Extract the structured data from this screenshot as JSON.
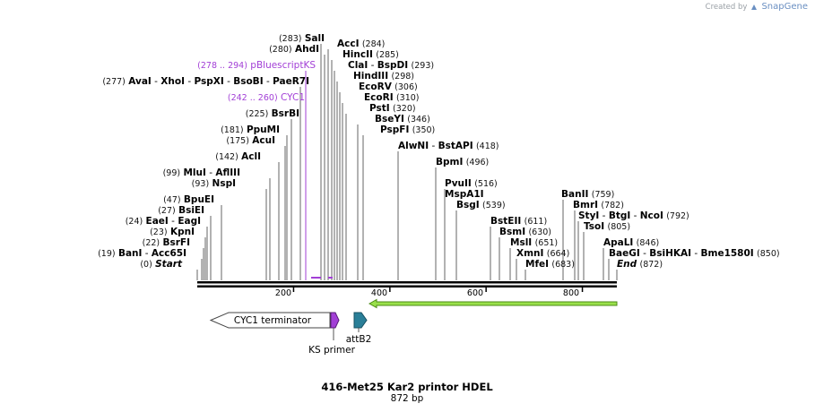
{
  "credit": {
    "prefix": "Created by",
    "brand": "SnapGene"
  },
  "title": {
    "name": "416-Met25 Kar2 printor HDEL",
    "length": "872 bp"
  },
  "colors": {
    "feature_purple": "#a23fd6",
    "attB2": "#2a7f98",
    "green_arrow": "#99e04a"
  },
  "sites": [
    {
      "pos": "(283)",
      "parts": [
        {
          "t": "SalI",
          "s": "b"
        }
      ]
    },
    {
      "pos": "(280)",
      "parts": [
        {
          "t": "AhdI",
          "s": "b"
        }
      ]
    },
    {
      "pos": "(278 .. 294)",
      "parts": [
        {
          "t": "pBluescriptKS",
          "s": ""
        }
      ],
      "purple": true
    },
    {
      "pos": "(277)",
      "parts": [
        {
          "t": "AvaI",
          "s": "b"
        },
        {
          "t": "   - ",
          "s": ""
        },
        {
          "t": "XhoI",
          "s": "b"
        },
        {
          "t": "   - ",
          "s": ""
        },
        {
          "t": "PspXI",
          "s": "b"
        },
        {
          "t": "   - ",
          "s": ""
        },
        {
          "t": "BsoBI",
          "s": "b"
        },
        {
          "t": "   - ",
          "s": ""
        },
        {
          "t": "PaeR7I",
          "s": "b"
        }
      ]
    },
    {
      "pos": "(242 .. 260)",
      "parts": [
        {
          "t": "CYC1",
          "s": ""
        }
      ],
      "purple": true
    },
    {
      "pos": "(225)",
      "parts": [
        {
          "t": "BsrBI",
          "s": "b"
        }
      ]
    },
    {
      "pos": "(181)",
      "parts": [
        {
          "t": "PpuMI",
          "s": "b"
        }
      ]
    },
    {
      "pos": "(175)",
      "parts": [
        {
          "t": "AcuI",
          "s": "b"
        }
      ]
    },
    {
      "pos": "(142)",
      "parts": [
        {
          "t": "AclI",
          "s": "b"
        }
      ]
    },
    {
      "pos": "(99)",
      "parts": [
        {
          "t": "MluI",
          "s": "b"
        },
        {
          "t": "   - ",
          "s": ""
        },
        {
          "t": "AflIII",
          "s": "b"
        }
      ]
    },
    {
      "pos": "(93)",
      "parts": [
        {
          "t": "NspI",
          "s": "b"
        }
      ]
    },
    {
      "pos": "(47)",
      "parts": [
        {
          "t": "BpuEI",
          "s": "b"
        }
      ]
    },
    {
      "pos": "(27)",
      "parts": [
        {
          "t": "BsiEI",
          "s": "b"
        }
      ]
    },
    {
      "pos": "(24)",
      "parts": [
        {
          "t": "EaeI",
          "s": "b"
        },
        {
          "t": "   - ",
          "s": ""
        },
        {
          "t": "EagI",
          "s": "b"
        }
      ]
    },
    {
      "pos": "(23)",
      "parts": [
        {
          "t": "KpnI",
          "s": "b"
        }
      ]
    },
    {
      "pos": "(22)",
      "parts": [
        {
          "t": "BsrFI",
          "s": "b"
        }
      ]
    },
    {
      "pos": "(19)",
      "parts": [
        {
          "t": "BanI",
          "s": "b"
        },
        {
          "t": "   - ",
          "s": ""
        },
        {
          "t": "Acc65I",
          "s": "b"
        }
      ]
    },
    {
      "pos": "(0)",
      "parts": [
        {
          "t": "Start",
          "s": "i"
        }
      ]
    },
    {
      "pos": "(284)",
      "parts": [
        {
          "t": "AccI",
          "s": "b"
        }
      ],
      "after": true
    },
    {
      "pos": "(285)",
      "parts": [
        {
          "t": "HincII",
          "s": "b"
        }
      ],
      "after": true
    },
    {
      "pos": "(293)",
      "parts": [
        {
          "t": "ClaI",
          "s": "b"
        },
        {
          "t": "   - ",
          "s": ""
        },
        {
          "t": "BspDI",
          "s": "b"
        }
      ],
      "after": true
    },
    {
      "pos": "(298)",
      "parts": [
        {
          "t": "HindIII",
          "s": "b"
        }
      ],
      "after": true
    },
    {
      "pos": "(306)",
      "parts": [
        {
          "t": "EcoRV",
          "s": "b"
        }
      ],
      "after": true
    },
    {
      "pos": "(310)",
      "parts": [
        {
          "t": "EcoRI",
          "s": "b"
        }
      ],
      "after": true
    },
    {
      "pos": "(320)",
      "parts": [
        {
          "t": "PstI",
          "s": "b"
        }
      ],
      "after": true
    },
    {
      "pos": "(346)",
      "parts": [
        {
          "t": "BseYI",
          "s": "b"
        }
      ],
      "after": true
    },
    {
      "pos": "(350)",
      "parts": [
        {
          "t": "PspFI",
          "s": "b"
        }
      ],
      "after": true
    },
    {
      "pos": "(418)",
      "parts": [
        {
          "t": "AlwNI",
          "s": "b"
        },
        {
          "t": "   - ",
          "s": ""
        },
        {
          "t": "BstAPI",
          "s": "b"
        }
      ],
      "after": true
    },
    {
      "pos": "(496)",
      "parts": [
        {
          "t": "BpmI",
          "s": "b"
        }
      ],
      "after": true
    },
    {
      "pos": "(516)",
      "parts": [
        {
          "t": "PvuII",
          "s": "b"
        }
      ],
      "after": true
    },
    {
      "pos": "",
      "parts": [
        {
          "t": "MspA1I",
          "s": "b"
        }
      ],
      "after": true
    },
    {
      "pos": "(539)",
      "parts": [
        {
          "t": "BsgI",
          "s": "b"
        }
      ],
      "after": true
    },
    {
      "pos": "(611)",
      "parts": [
        {
          "t": "BstEII",
          "s": "b"
        }
      ],
      "after": true
    },
    {
      "pos": "(630)",
      "parts": [
        {
          "t": "BsmI",
          "s": "b"
        }
      ],
      "after": true
    },
    {
      "pos": "(651)",
      "parts": [
        {
          "t": "MslI",
          "s": "b"
        }
      ],
      "after": true
    },
    {
      "pos": "(664)",
      "parts": [
        {
          "t": "XmnI",
          "s": "b"
        }
      ],
      "after": true
    },
    {
      "pos": "(683)",
      "parts": [
        {
          "t": "MfeI",
          "s": "b"
        }
      ],
      "after": true
    },
    {
      "pos": "(759)",
      "parts": [
        {
          "t": "BanII",
          "s": "b"
        }
      ],
      "after": true
    },
    {
      "pos": "(782)",
      "parts": [
        {
          "t": "BmrI",
          "s": "b"
        }
      ],
      "after": true
    },
    {
      "pos": "(792)",
      "parts": [
        {
          "t": "StyI",
          "s": "b"
        },
        {
          "t": "   - ",
          "s": ""
        },
        {
          "t": "BtgI",
          "s": "b"
        },
        {
          "t": "   - ",
          "s": ""
        },
        {
          "t": "NcoI",
          "s": "b"
        }
      ],
      "after": true
    },
    {
      "pos": "(805)",
      "parts": [
        {
          "t": "TsoI",
          "s": "b"
        }
      ],
      "after": true
    },
    {
      "pos": "(846)",
      "parts": [
        {
          "t": "ApaLI",
          "s": "b"
        }
      ],
      "after": true
    },
    {
      "pos": "(850)",
      "parts": [
        {
          "t": "BaeGI",
          "s": "b"
        },
        {
          "t": "   - ",
          "s": ""
        },
        {
          "t": "BsiHKAI",
          "s": "b"
        },
        {
          "t": "   - ",
          "s": ""
        },
        {
          "t": "Bme1580I",
          "s": "b"
        }
      ],
      "after": true
    },
    {
      "pos": "(872)",
      "parts": [
        {
          "t": "End",
          "s": "i"
        }
      ],
      "after": true
    }
  ],
  "ticks": [
    "200",
    "400",
    "600",
    "800"
  ],
  "features": {
    "cyc1_terminator": "CYC1 terminator",
    "attB2": "attB2",
    "ks_primer": "KS primer"
  }
}
